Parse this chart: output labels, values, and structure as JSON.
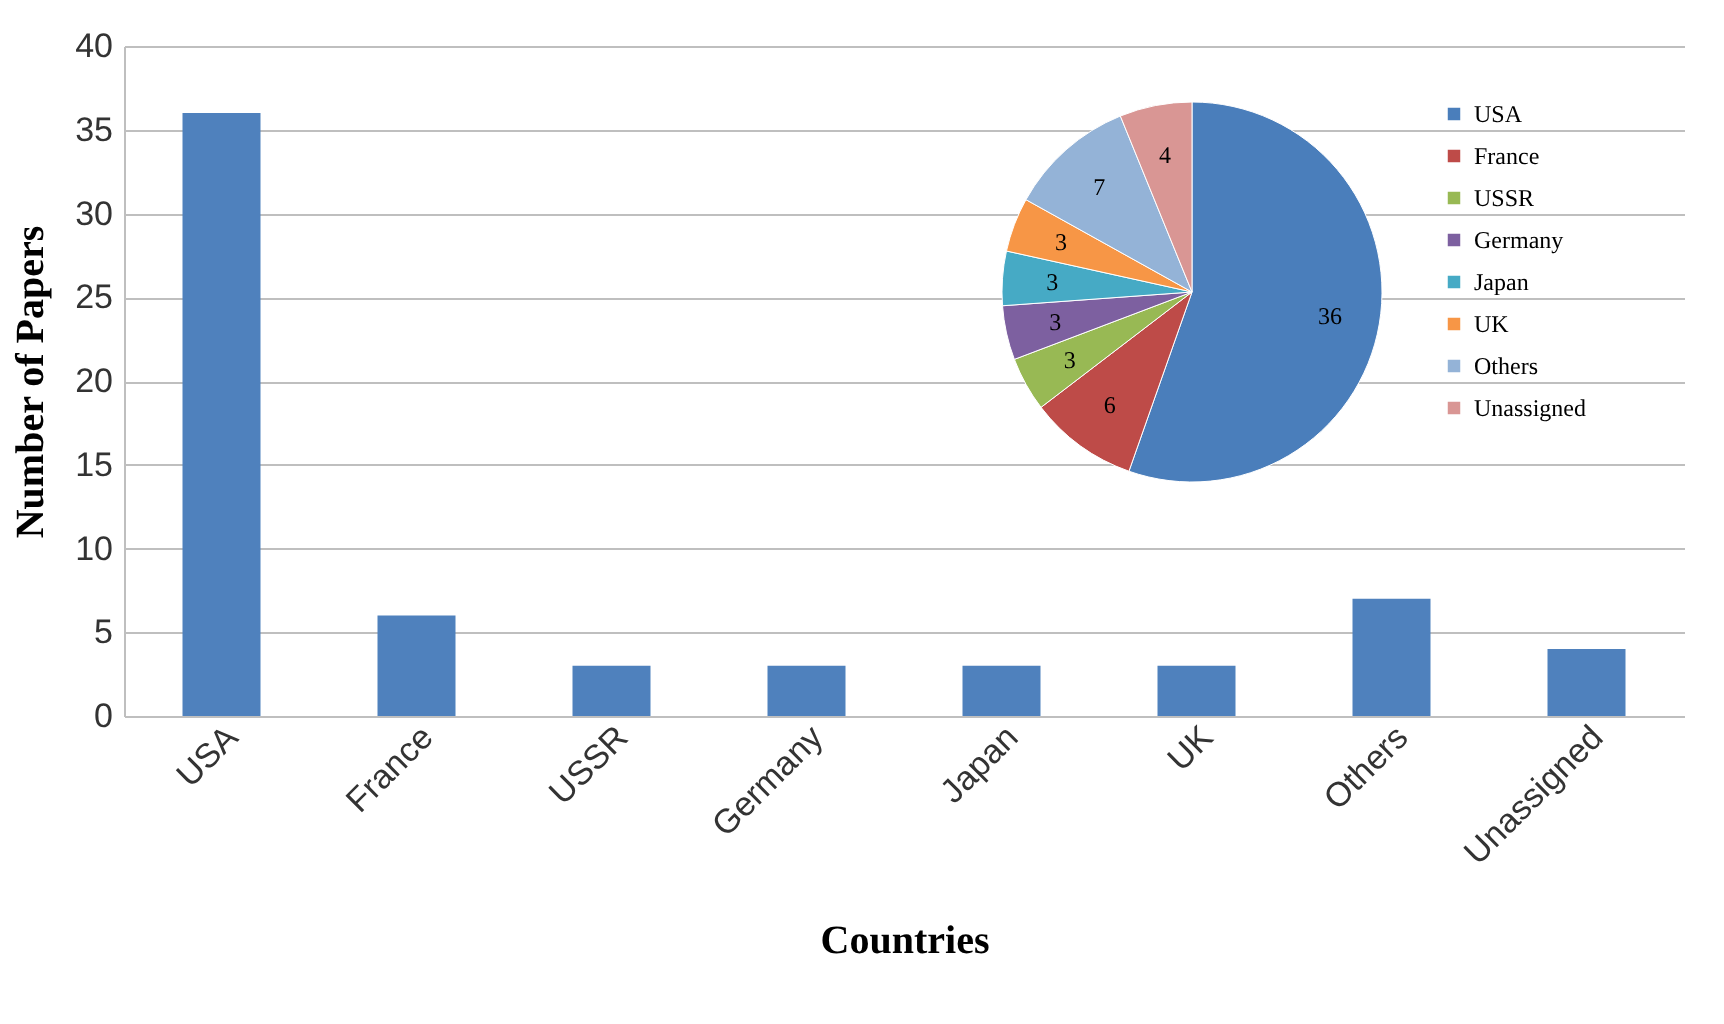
{
  "chart_data": [
    {
      "type": "bar",
      "xlabel": "Countries",
      "ylabel": "Number of Papers",
      "categories": [
        "USA",
        "France",
        "USSR",
        "Germany",
        "Japan",
        "UK",
        "Others",
        "Unassigned"
      ],
      "values": [
        36,
        6,
        3,
        3,
        3,
        3,
        7,
        4
      ],
      "color": "#4f81bd",
      "ylim": [
        0,
        40
      ],
      "yticks": [
        0,
        5,
        10,
        15,
        20,
        25,
        30,
        35,
        40
      ],
      "grid": "y"
    },
    {
      "type": "pie",
      "categories": [
        "USA",
        "France",
        "USSR",
        "Germany",
        "Japan",
        "UK",
        "Others",
        "Unassigned"
      ],
      "values": [
        36,
        6,
        3,
        3,
        3,
        3,
        7,
        4
      ],
      "colors": [
        "#4a7ebb",
        "#be4b48",
        "#98b954",
        "#7d60a0",
        "#46aac5",
        "#f79646",
        "#94b3d7",
        "#d99694"
      ],
      "data_labels": true,
      "legend": "right"
    }
  ]
}
